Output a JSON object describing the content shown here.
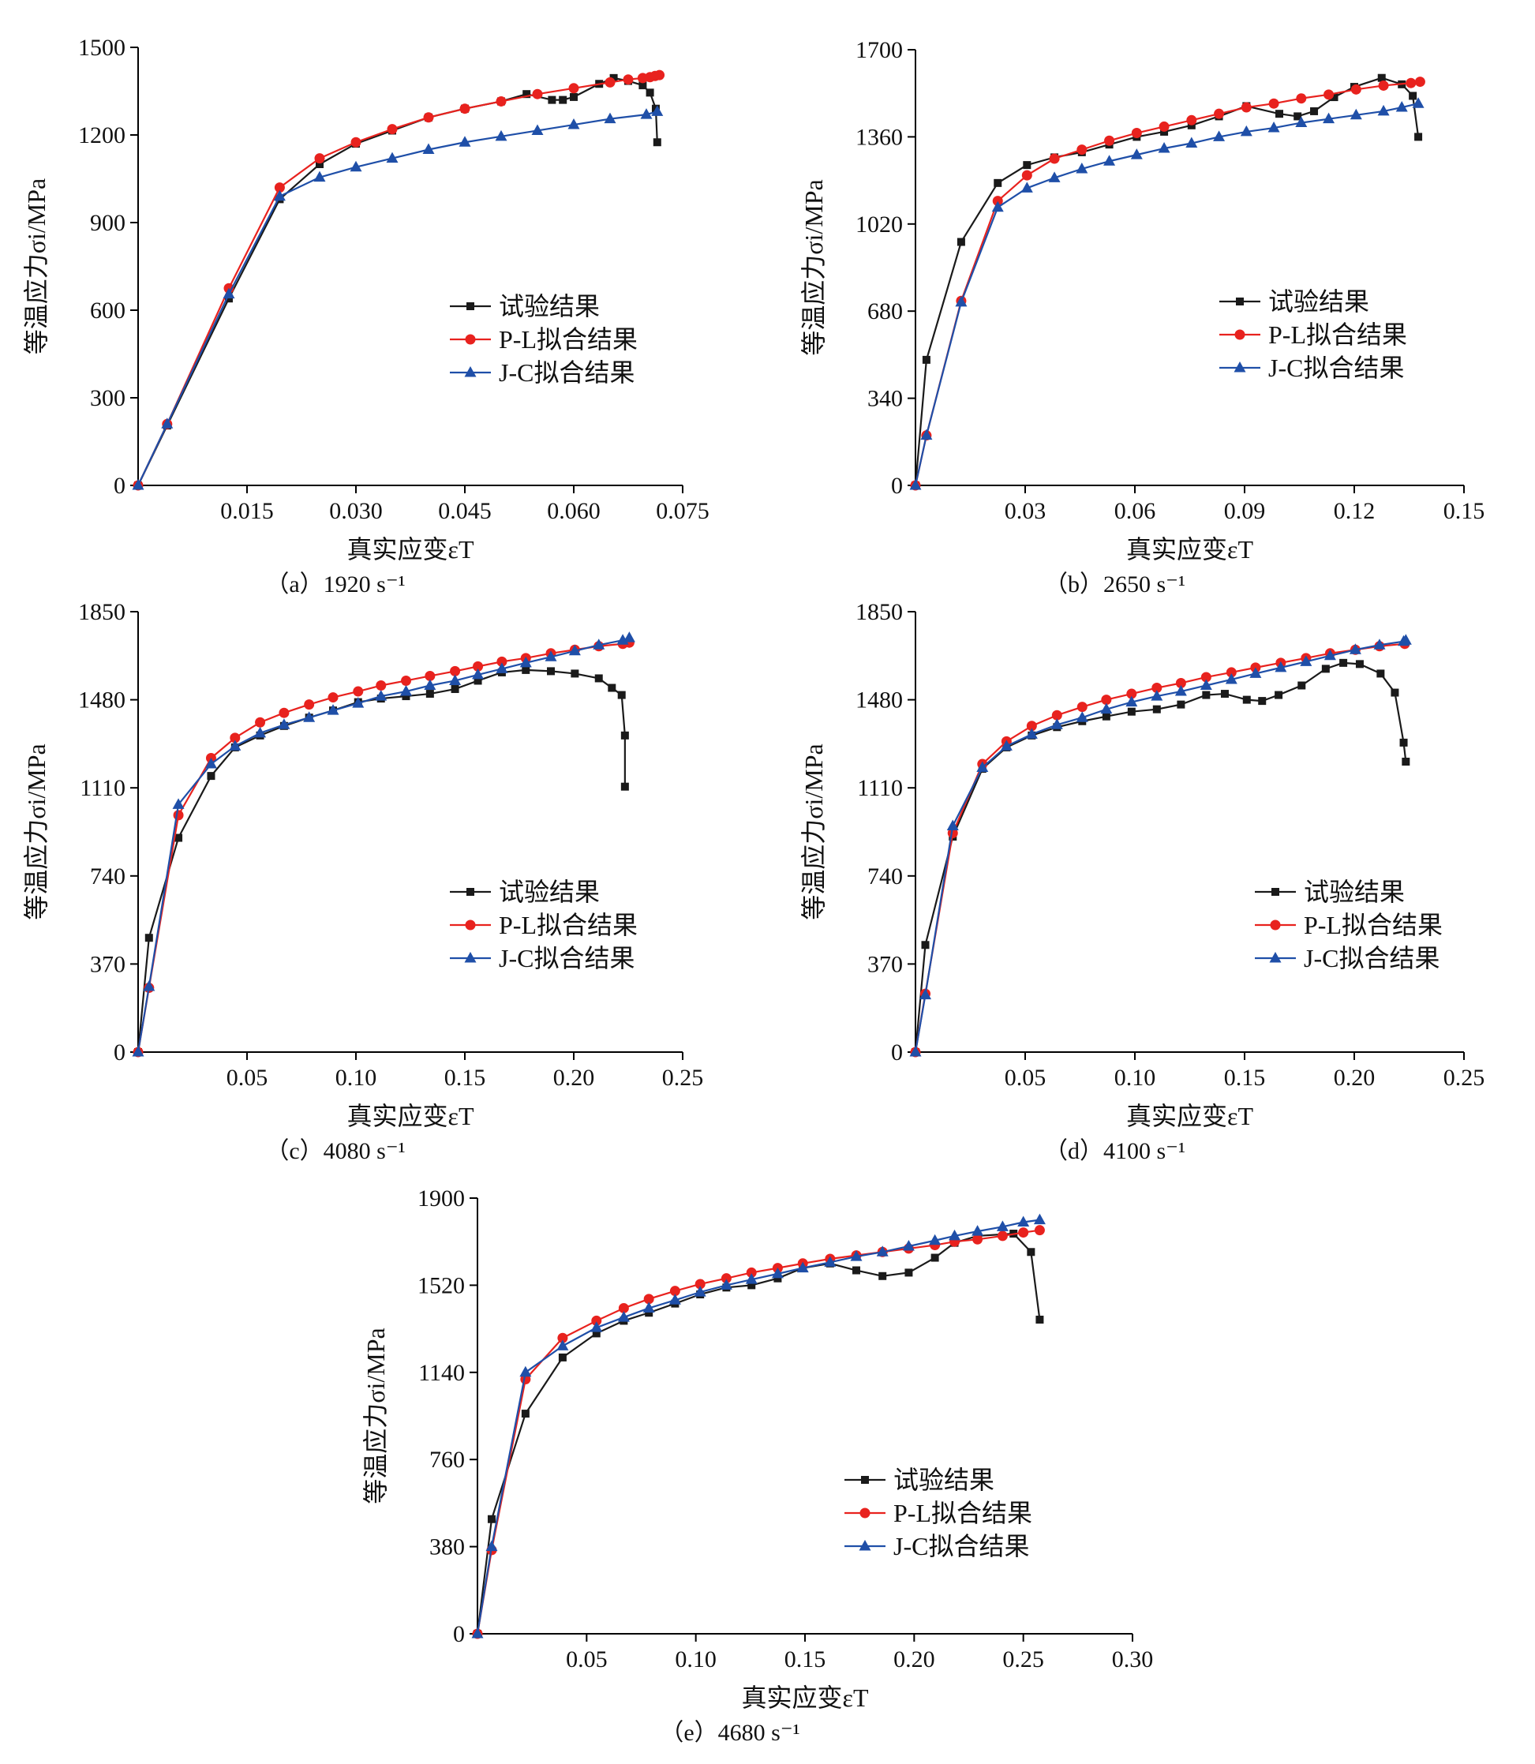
{
  "colors": {
    "experiment": "#1a1a1a",
    "pl": "#e8221e",
    "jc": "#1f4fa8"
  },
  "chart_data": [
    {
      "type": "line",
      "caption": "（a）1920 s⁻¹",
      "xlabel": "真实应变εT",
      "ylabel": "等温应力σi/MPa",
      "xlim": [
        0,
        0.075
      ],
      "ylim": [
        0,
        1500
      ],
      "xticks": [
        0.015,
        0.03,
        0.045,
        0.06,
        0.075
      ],
      "xtick_labels": [
        "0.015",
        "0.030",
        "0.045",
        "0.060",
        "0.075"
      ],
      "yticks": [
        0,
        300,
        600,
        900,
        1200,
        1500
      ],
      "ytick_labels": [
        "0",
        "300",
        "600",
        "900",
        "1200",
        "1500"
      ],
      "legend": "right-middle",
      "series": [
        {
          "name": "试验结果",
          "marker": "square",
          "x": [
            0,
            0.004,
            0.0125,
            0.0195,
            0.025,
            0.03,
            0.035,
            0.04,
            0.045,
            0.05,
            0.0535,
            0.057,
            0.0585,
            0.06,
            0.0635,
            0.0655,
            0.0675,
            0.0695,
            0.0705,
            0.0713,
            0.0715
          ],
          "y": [
            0,
            205,
            640,
            980,
            1100,
            1170,
            1215,
            1260,
            1290,
            1315,
            1340,
            1320,
            1320,
            1330,
            1375,
            1395,
            1385,
            1370,
            1345,
            1290,
            1175
          ]
        },
        {
          "name": "P-L拟合结果",
          "marker": "circle",
          "x": [
            0,
            0.004,
            0.0125,
            0.0195,
            0.025,
            0.03,
            0.035,
            0.04,
            0.045,
            0.05,
            0.055,
            0.06,
            0.065,
            0.0675,
            0.0695,
            0.0705,
            0.0712,
            0.0718
          ],
          "y": [
            0,
            210,
            675,
            1020,
            1120,
            1175,
            1220,
            1260,
            1290,
            1315,
            1340,
            1360,
            1380,
            1390,
            1395,
            1398,
            1402,
            1405
          ]
        },
        {
          "name": "J-C拟合结果",
          "marker": "triangle",
          "x": [
            0,
            0.004,
            0.0125,
            0.0195,
            0.025,
            0.03,
            0.035,
            0.04,
            0.045,
            0.05,
            0.055,
            0.06,
            0.065,
            0.07,
            0.0715
          ],
          "y": [
            0,
            210,
            655,
            990,
            1055,
            1090,
            1120,
            1150,
            1175,
            1195,
            1215,
            1235,
            1255,
            1270,
            1280
          ]
        }
      ]
    },
    {
      "type": "line",
      "caption": "（b）2650 s⁻¹",
      "xlabel": "真实应变εT",
      "ylabel": "等温应力σi/MPa",
      "xlim": [
        0,
        0.15
      ],
      "ylim": [
        0,
        1700
      ],
      "xticks": [
        0.03,
        0.06,
        0.09,
        0.12,
        0.15
      ],
      "xtick_labels": [
        "0.03",
        "0.06",
        "0.09",
        "0.12",
        "0.15"
      ],
      "yticks": [
        0,
        340,
        680,
        1020,
        1360,
        1700
      ],
      "ytick_labels": [
        "0",
        "340",
        "680",
        "1020",
        "1360",
        "1700"
      ],
      "legend": "right-middle",
      "series": [
        {
          "name": "试验结果",
          "marker": "square",
          "x": [
            0,
            0.003,
            0.0125,
            0.0225,
            0.0305,
            0.038,
            0.0455,
            0.053,
            0.0605,
            0.068,
            0.0755,
            0.083,
            0.0905,
            0.0995,
            0.1045,
            0.109,
            0.1145,
            0.12,
            0.1275,
            0.133,
            0.136,
            0.1375
          ],
          "y": [
            0,
            490,
            950,
            1180,
            1250,
            1280,
            1300,
            1330,
            1360,
            1380,
            1405,
            1440,
            1480,
            1450,
            1440,
            1460,
            1515,
            1555,
            1590,
            1565,
            1520,
            1360
          ]
        },
        {
          "name": "P-L拟合结果",
          "marker": "circle",
          "x": [
            0,
            0.003,
            0.0125,
            0.0225,
            0.0305,
            0.038,
            0.0455,
            0.053,
            0.0605,
            0.068,
            0.0755,
            0.083,
            0.0905,
            0.098,
            0.1055,
            0.113,
            0.1205,
            0.128,
            0.1355,
            0.138
          ],
          "y": [
            0,
            195,
            720,
            1110,
            1210,
            1275,
            1310,
            1345,
            1375,
            1400,
            1425,
            1450,
            1475,
            1490,
            1510,
            1525,
            1545,
            1560,
            1570,
            1575
          ]
        },
        {
          "name": "J-C拟合结果",
          "marker": "triangle",
          "x": [
            0,
            0.003,
            0.0125,
            0.0225,
            0.0305,
            0.038,
            0.0455,
            0.053,
            0.0605,
            0.068,
            0.0755,
            0.083,
            0.0905,
            0.098,
            0.1055,
            0.113,
            0.1205,
            0.128,
            0.133,
            0.1375
          ],
          "y": [
            0,
            195,
            715,
            1085,
            1160,
            1200,
            1235,
            1265,
            1290,
            1315,
            1335,
            1360,
            1380,
            1395,
            1415,
            1430,
            1445,
            1460,
            1475,
            1490
          ]
        }
      ]
    },
    {
      "type": "line",
      "caption": "（c）4080 s⁻¹",
      "xlabel": "真实应变εT",
      "ylabel": "等温应力σi/MPa",
      "xlim": [
        0,
        0.25
      ],
      "ylim": [
        0,
        1850
      ],
      "xticks": [
        0.05,
        0.1,
        0.15,
        0.2,
        0.25
      ],
      "xtick_labels": [
        "0.05",
        "0.10",
        "0.15",
        "0.20",
        "0.25"
      ],
      "yticks": [
        0,
        370,
        740,
        1110,
        1480,
        1850
      ],
      "ytick_labels": [
        "0",
        "370",
        "740",
        "1110",
        "1480",
        "1850"
      ],
      "legend": "right-middle",
      "series": [
        {
          "name": "试验结果",
          "marker": "square",
          "x": [
            0,
            0.005,
            0.0185,
            0.0335,
            0.0445,
            0.056,
            0.067,
            0.0785,
            0.0895,
            0.101,
            0.1115,
            0.123,
            0.134,
            0.1455,
            0.156,
            0.167,
            0.178,
            0.1895,
            0.2005,
            0.2115,
            0.2175,
            0.222,
            0.2235,
            0.2235
          ],
          "y": [
            0,
            480,
            900,
            1160,
            1280,
            1330,
            1370,
            1405,
            1435,
            1470,
            1485,
            1495,
            1505,
            1525,
            1560,
            1595,
            1605,
            1600,
            1590,
            1570,
            1530,
            1500,
            1330,
            1115
          ]
        },
        {
          "name": "P-L拟合结果",
          "marker": "circle",
          "x": [
            0,
            0.005,
            0.0185,
            0.0335,
            0.0445,
            0.056,
            0.067,
            0.0785,
            0.0895,
            0.101,
            0.1115,
            0.123,
            0.134,
            0.1455,
            0.156,
            0.167,
            0.178,
            0.1895,
            0.2005,
            0.2115,
            0.2225,
            0.2255
          ],
          "y": [
            0,
            270,
            995,
            1235,
            1320,
            1385,
            1425,
            1460,
            1490,
            1515,
            1540,
            1560,
            1580,
            1600,
            1620,
            1640,
            1655,
            1675,
            1690,
            1705,
            1715,
            1720
          ]
        },
        {
          "name": "J-C拟合结果",
          "marker": "triangle",
          "x": [
            0,
            0.005,
            0.0185,
            0.0335,
            0.0445,
            0.056,
            0.067,
            0.0785,
            0.0895,
            0.101,
            0.1115,
            0.123,
            0.134,
            0.1455,
            0.156,
            0.167,
            0.178,
            0.1895,
            0.2005,
            0.2115,
            0.2225,
            0.2255
          ],
          "y": [
            0,
            275,
            1040,
            1210,
            1285,
            1340,
            1375,
            1405,
            1435,
            1465,
            1495,
            1515,
            1540,
            1560,
            1585,
            1610,
            1635,
            1660,
            1685,
            1710,
            1730,
            1740
          ]
        }
      ]
    },
    {
      "type": "line",
      "caption": "（d）4100 s⁻¹",
      "xlabel": "真实应变εT",
      "ylabel": "等温应力σi/MPa",
      "xlim": [
        0,
        0.25
      ],
      "ylim": [
        0,
        1850
      ],
      "xticks": [
        0.05,
        0.1,
        0.15,
        0.2,
        0.25
      ],
      "xtick_labels": [
        "0.05",
        "0.10",
        "0.15",
        "0.20",
        "0.25"
      ],
      "yticks": [
        0,
        370,
        740,
        1110,
        1480,
        1850
      ],
      "ytick_labels": [
        "0",
        "370",
        "740",
        "1110",
        "1480",
        "1850"
      ],
      "legend": "right-middle",
      "series": [
        {
          "name": "试验结果",
          "marker": "square",
          "x": [
            0,
            0.0045,
            0.017,
            0.0305,
            0.0415,
            0.053,
            0.0645,
            0.076,
            0.087,
            0.0985,
            0.11,
            0.121,
            0.1325,
            0.141,
            0.151,
            0.158,
            0.1655,
            0.176,
            0.187,
            0.195,
            0.2025,
            0.212,
            0.2185,
            0.2225,
            0.2235
          ],
          "y": [
            0,
            450,
            905,
            1190,
            1280,
            1330,
            1365,
            1390,
            1410,
            1430,
            1440,
            1460,
            1500,
            1505,
            1480,
            1475,
            1500,
            1540,
            1610,
            1635,
            1630,
            1590,
            1510,
            1300,
            1220
          ]
        },
        {
          "name": "P-L拟合结果",
          "marker": "circle",
          "x": [
            0,
            0.0045,
            0.017,
            0.0305,
            0.0415,
            0.053,
            0.0645,
            0.076,
            0.087,
            0.0985,
            0.11,
            0.121,
            0.1325,
            0.144,
            0.155,
            0.1665,
            0.178,
            0.189,
            0.2005,
            0.2115,
            0.223
          ],
          "y": [
            0,
            245,
            920,
            1210,
            1305,
            1370,
            1415,
            1450,
            1480,
            1505,
            1530,
            1550,
            1575,
            1595,
            1615,
            1635,
            1655,
            1675,
            1690,
            1705,
            1715
          ]
        },
        {
          "name": "J-C拟合结果",
          "marker": "triangle",
          "x": [
            0,
            0.0045,
            0.017,
            0.0305,
            0.0415,
            0.053,
            0.0645,
            0.076,
            0.087,
            0.0985,
            0.11,
            0.121,
            0.1325,
            0.144,
            0.155,
            0.1665,
            0.178,
            0.189,
            0.2005,
            0.2115,
            0.2225,
            0.2235
          ],
          "y": [
            0,
            240,
            950,
            1195,
            1285,
            1335,
            1375,
            1405,
            1440,
            1470,
            1495,
            1515,
            1540,
            1565,
            1590,
            1615,
            1640,
            1665,
            1690,
            1710,
            1725,
            1730
          ]
        }
      ]
    },
    {
      "type": "line",
      "caption": "（e）4680 s⁻¹",
      "xlabel": "真实应变εT",
      "ylabel": "等温应力σi/MPa",
      "xlim": [
        0,
        0.3
      ],
      "ylim": [
        0,
        1900
      ],
      "xticks": [
        0.05,
        0.1,
        0.15,
        0.2,
        0.25,
        0.3
      ],
      "xtick_labels": [
        "0.05",
        "0.10",
        "0.15",
        "0.20",
        "0.25",
        "0.30"
      ],
      "yticks": [
        0,
        380,
        760,
        1140,
        1520,
        1900
      ],
      "ytick_labels": [
        "0",
        "380",
        "760",
        "1140",
        "1520",
        "1900"
      ],
      "legend": "right-middle",
      "series": [
        {
          "name": "试验结果",
          "marker": "square",
          "x": [
            0,
            0.0065,
            0.022,
            0.039,
            0.0545,
            0.067,
            0.0785,
            0.0905,
            0.102,
            0.114,
            0.1255,
            0.1375,
            0.149,
            0.1615,
            0.1735,
            0.1855,
            0.1975,
            0.2095,
            0.2185,
            0.229,
            0.2455,
            0.2535,
            0.2575
          ],
          "y": [
            0,
            500,
            960,
            1205,
            1310,
            1365,
            1400,
            1440,
            1480,
            1510,
            1520,
            1550,
            1595,
            1615,
            1585,
            1560,
            1575,
            1640,
            1705,
            1735,
            1745,
            1665,
            1370
          ]
        },
        {
          "name": "P-L拟合结果",
          "marker": "circle",
          "x": [
            0,
            0.0065,
            0.022,
            0.039,
            0.0545,
            0.067,
            0.0785,
            0.0905,
            0.102,
            0.114,
            0.1255,
            0.1375,
            0.149,
            0.1615,
            0.1735,
            0.1855,
            0.1975,
            0.2095,
            0.2185,
            0.229,
            0.2405,
            0.25,
            0.2575
          ],
          "y": [
            0,
            365,
            1110,
            1290,
            1365,
            1420,
            1460,
            1495,
            1525,
            1550,
            1575,
            1595,
            1615,
            1635,
            1650,
            1665,
            1680,
            1695,
            1710,
            1720,
            1735,
            1750,
            1760
          ]
        },
        {
          "name": "J-C拟合结果",
          "marker": "triangle",
          "x": [
            0,
            0.0065,
            0.022,
            0.039,
            0.0545,
            0.067,
            0.0785,
            0.0905,
            0.102,
            0.114,
            0.1255,
            0.1375,
            0.149,
            0.1615,
            0.1735,
            0.1855,
            0.1975,
            0.2095,
            0.2185,
            0.229,
            0.2405,
            0.25,
            0.2575
          ],
          "y": [
            0,
            380,
            1140,
            1255,
            1335,
            1380,
            1420,
            1455,
            1490,
            1520,
            1545,
            1570,
            1595,
            1620,
            1645,
            1665,
            1690,
            1715,
            1735,
            1755,
            1775,
            1795,
            1805
          ]
        }
      ]
    }
  ]
}
